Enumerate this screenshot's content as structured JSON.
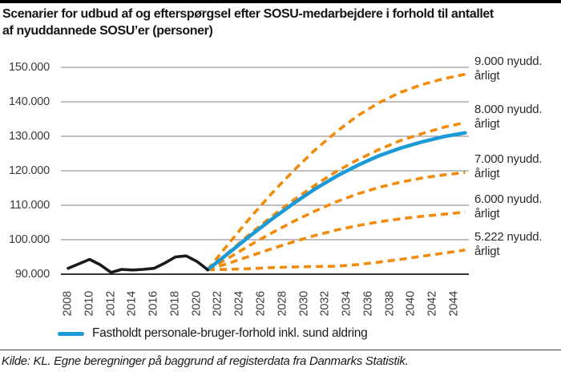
{
  "header": {
    "title_line1": "Scenarier for udbud af og efterspørgsel efter SOSU-medarbejdere i forhold til antallet",
    "title_line2": "af nyuddannede SOSU’er (personer)"
  },
  "chart_data": {
    "type": "line",
    "title": "Scenarier for udbud af og efterspørgsel efter SOSU-medarbejdere i forhold til antallet af nyuddannede SOSU’er (personer)",
    "xlabel": "",
    "ylabel": "",
    "xlim": [
      2008,
      2045
    ],
    "ylim": [
      90000,
      150000
    ],
    "grid": true,
    "legend_position": "bottom",
    "colors": {
      "grid": "#7f7f7f",
      "axis": "#1a1a1a",
      "orange": "#F28A0A",
      "blue": "#1A9AD7",
      "black": "#1A1A1A"
    },
    "yticks": [
      {
        "value": 90000,
        "label": "90.000"
      },
      {
        "value": 100000,
        "label": "100.000"
      },
      {
        "value": 110000,
        "label": "110.000"
      },
      {
        "value": 120000,
        "label": "120.000"
      },
      {
        "value": 130000,
        "label": "130.000"
      },
      {
        "value": 140000,
        "label": "140.000"
      },
      {
        "value": 150000,
        "label": "150.000"
      }
    ],
    "xticks": [
      {
        "value": 2008,
        "label": "2008"
      },
      {
        "value": 2010,
        "label": "2010"
      },
      {
        "value": 2012,
        "label": "2012"
      },
      {
        "value": 2014,
        "label": "2014"
      },
      {
        "value": 2016,
        "label": "2016"
      },
      {
        "value": 2018,
        "label": "2018"
      },
      {
        "value": 2020,
        "label": "2020"
      },
      {
        "value": 2022,
        "label": "2022"
      },
      {
        "value": 2024,
        "label": "2024"
      },
      {
        "value": 2026,
        "label": "2026"
      },
      {
        "value": 2028,
        "label": "2028"
      },
      {
        "value": 2030,
        "label": "2030"
      },
      {
        "value": 2032,
        "label": "2032"
      },
      {
        "value": 2034,
        "label": "2034"
      },
      {
        "value": 2036,
        "label": "2036"
      },
      {
        "value": 2038,
        "label": "2038"
      },
      {
        "value": 2040,
        "label": "2040"
      },
      {
        "value": 2042,
        "label": "2042"
      },
      {
        "value": 2044,
        "label": "2044"
      }
    ],
    "series": [
      {
        "id": "nyudd-9000",
        "right_label": {
          "line1": "9.000 nyudd.",
          "line2": "årligt"
        },
        "color": "#F28A0A",
        "style": "dashed",
        "stroke_width": 3.6,
        "x": [
          2021,
          2023,
          2025,
          2027,
          2029,
          2031,
          2033,
          2035,
          2037,
          2039,
          2041,
          2043,
          2045
        ],
        "values": [
          91300,
          99000,
          106500,
          113500,
          120000,
          126000,
          131300,
          136000,
          139800,
          142800,
          145000,
          146700,
          148000
        ]
      },
      {
        "id": "nyudd-8000",
        "right_label": {
          "line1": "8.000 nyudd.",
          "line2": "årligt"
        },
        "color": "#F28A0A",
        "style": "dashed",
        "stroke_width": 3.6,
        "x": [
          2021,
          2023,
          2025,
          2027,
          2029,
          2031,
          2033,
          2035,
          2037,
          2039,
          2041,
          2043,
          2045
        ],
        "values": [
          91300,
          96500,
          101800,
          106800,
          111500,
          115800,
          119800,
          123200,
          126200,
          128800,
          130800,
          132600,
          134000
        ]
      },
      {
        "id": "nyudd-7000",
        "right_label": {
          "line1": "7.000 nyudd.",
          "line2": "årligt"
        },
        "color": "#F28A0A",
        "style": "dashed",
        "stroke_width": 3.6,
        "x": [
          2021,
          2023,
          2025,
          2027,
          2029,
          2031,
          2033,
          2035,
          2037,
          2039,
          2041,
          2043,
          2045
        ],
        "values": [
          91300,
          94800,
          98500,
          102000,
          105300,
          108300,
          111000,
          113300,
          115200,
          116700,
          117900,
          118800,
          119500
        ]
      },
      {
        "id": "nyudd-6000",
        "right_label": {
          "line1": "6.000 nyudd.",
          "line2": "årligt"
        },
        "color": "#F28A0A",
        "style": "dashed",
        "stroke_width": 3.6,
        "x": [
          2021,
          2023,
          2025,
          2027,
          2029,
          2031,
          2033,
          2035,
          2037,
          2039,
          2041,
          2043,
          2045
        ],
        "values": [
          91300,
          93200,
          95300,
          97400,
          99400,
          101200,
          102800,
          104100,
          105200,
          106100,
          106800,
          107400,
          108000
        ]
      },
      {
        "id": "nyudd-5222",
        "right_label": {
          "line1": "5.222 nyudd.",
          "line2": "årligt"
        },
        "color": "#F28A0A",
        "style": "dashed",
        "stroke_width": 3.6,
        "x": [
          2021,
          2023,
          2025,
          2027,
          2029,
          2031,
          2033,
          2035,
          2037,
          2039,
          2041,
          2043,
          2045
        ],
        "values": [
          91300,
          91400,
          91600,
          91900,
          92100,
          92200,
          92300,
          92800,
          93500,
          94300,
          95200,
          96100,
          97000
        ]
      },
      {
        "id": "fastholdt-personale-bruger-forhold",
        "right_label": null,
        "color": "#1A9AD7",
        "style": "solid",
        "stroke_width": 4.5,
        "x": [
          2021,
          2023,
          2025,
          2027,
          2029,
          2031,
          2033,
          2035,
          2037,
          2039,
          2041,
          2043,
          2045
        ],
        "values": [
          91300,
          96200,
          101200,
          106000,
          110500,
          114700,
          118400,
          121600,
          124400,
          126600,
          128400,
          129900,
          131000
        ]
      },
      {
        "id": "historisk-udbud",
        "right_label": null,
        "color": "#1A1A1A",
        "style": "solid",
        "stroke_width": 3.6,
        "x": [
          2008,
          2009,
          2010,
          2011,
          2012,
          2013,
          2014,
          2015,
          2016,
          2017,
          2018,
          2019,
          2020,
          2021
        ],
        "values": [
          91700,
          93000,
          94300,
          92700,
          90500,
          91400,
          91200,
          91400,
          91700,
          93200,
          95000,
          95300,
          93700,
          91300
        ]
      }
    ],
    "legend": {
      "label": "Fastholdt personale-bruger-forhold inkl. sund aldring",
      "color": "#1A9AD7"
    }
  },
  "footer": {
    "source": "Kilde: KL. Egne beregninger på baggrund af registerdata fra Danmarks Statistik."
  }
}
